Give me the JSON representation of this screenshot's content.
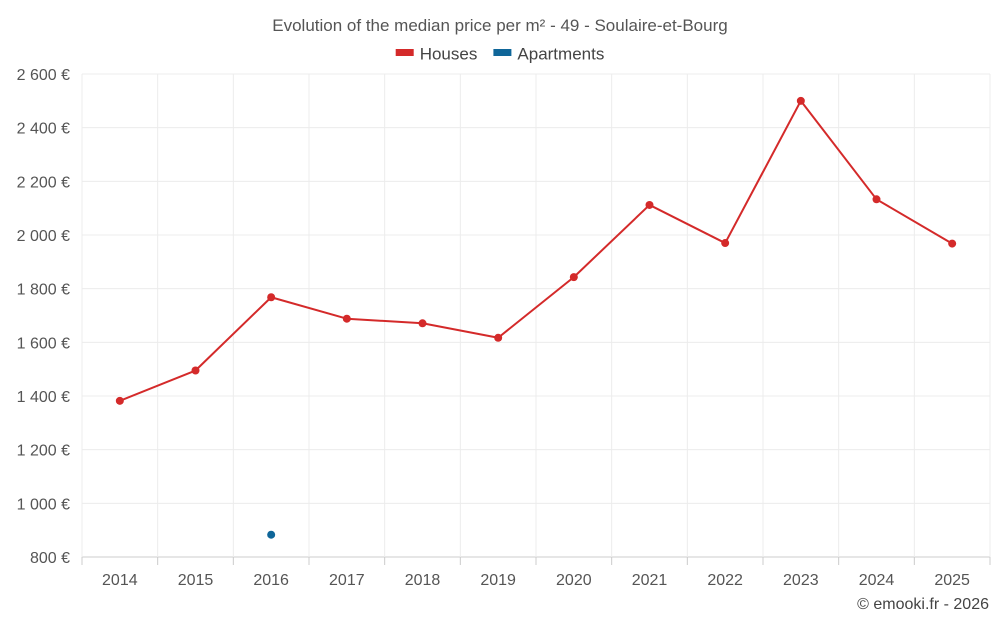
{
  "chart_data": {
    "type": "line",
    "title": "Evolution of the median price per m² - 49 - Soulaire-et-Bourg",
    "categories": [
      "2014",
      "2015",
      "2016",
      "2017",
      "2018",
      "2019",
      "2020",
      "2021",
      "2022",
      "2023",
      "2024",
      "2025"
    ],
    "series": [
      {
        "name": "Houses",
        "color": "#d42a2a",
        "values": [
          1382,
          1495,
          1768,
          1688,
          1671,
          1617,
          1843,
          2112,
          1970,
          2500,
          2133,
          1968
        ]
      },
      {
        "name": "Apartments",
        "color": "#0f6699",
        "values": [
          null,
          null,
          883,
          null,
          null,
          null,
          null,
          null,
          null,
          null,
          null,
          null
        ]
      }
    ],
    "ylim": [
      800,
      2600
    ],
    "yticks": [
      800,
      1000,
      1200,
      1400,
      1600,
      1800,
      2000,
      2200,
      2400,
      2600
    ],
    "ytick_labels": [
      "800 €",
      "1 000 €",
      "1 200 €",
      "1 400 €",
      "1 600 €",
      "1 800 €",
      "2 000 €",
      "2 200 €",
      "2 400 €",
      "2 600 €"
    ],
    "xlabel": "",
    "ylabel": "",
    "grid": true,
    "legend_position": "top-center"
  },
  "credit": "© emooki.fr - 2026"
}
